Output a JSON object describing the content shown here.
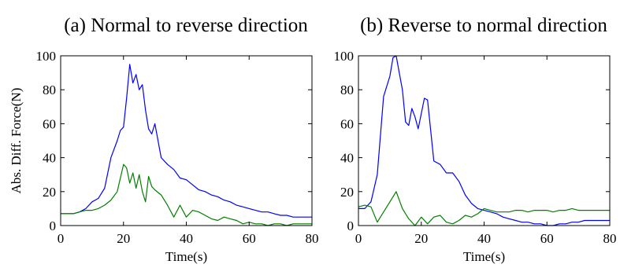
{
  "chart_data": [
    {
      "type": "line",
      "title": "(a) Normal to reverse direction",
      "xlabel": "Time(s)",
      "ylabel": "Abs. Diff. Force(N)",
      "xlim": [
        0,
        80
      ],
      "ylim": [
        0,
        100
      ],
      "xticks": [
        "0",
        "20",
        "40",
        "60",
        "80"
      ],
      "yticks": [
        "0",
        "20",
        "40",
        "60",
        "80",
        "100"
      ],
      "grid": false,
      "series": [
        {
          "color": "#0000ff",
          "x": [
            0,
            2,
            4,
            6,
            8,
            10,
            12,
            14,
            16,
            18,
            19,
            20,
            21,
            22,
            23,
            24,
            25,
            26,
            27,
            28,
            29,
            30,
            32,
            34,
            36,
            38,
            40,
            42,
            44,
            46,
            48,
            50,
            52,
            54,
            56,
            58,
            60,
            62,
            64,
            66,
            68,
            70,
            72,
            74,
            76,
            78,
            80
          ],
          "y": [
            7,
            7,
            7,
            8,
            10,
            14,
            16,
            22,
            40,
            50,
            56,
            58,
            75,
            95,
            84,
            89,
            80,
            83,
            68,
            57,
            54,
            60,
            40,
            36,
            33,
            28,
            27,
            24,
            21,
            20,
            18,
            17,
            15,
            14,
            12,
            11,
            10,
            9,
            8,
            8,
            7,
            6,
            6,
            5,
            5,
            5,
            5
          ]
        },
        {
          "color": "#008000",
          "x": [
            0,
            2,
            4,
            6,
            8,
            10,
            12,
            14,
            16,
            18,
            19,
            20,
            21,
            22,
            23,
            24,
            25,
            26,
            27,
            28,
            29,
            30,
            32,
            34,
            36,
            38,
            40,
            42,
            44,
            46,
            48,
            50,
            52,
            54,
            56,
            58,
            60,
            62,
            64,
            66,
            68,
            70,
            72,
            74,
            76,
            78,
            80
          ],
          "y": [
            7,
            7,
            7,
            8,
            9,
            9,
            10,
            12,
            15,
            20,
            28,
            36,
            34,
            25,
            31,
            22,
            30,
            20,
            14,
            29,
            23,
            21,
            18,
            12,
            5,
            12,
            5,
            9,
            8,
            6,
            4,
            3,
            5,
            4,
            3,
            1,
            2,
            1,
            1,
            0,
            1,
            1,
            0,
            1,
            1,
            1,
            1
          ]
        }
      ]
    },
    {
      "type": "line",
      "title": "(b) Reverse to normal direction",
      "xlabel": "Time(s)",
      "ylabel": "",
      "xlim": [
        0,
        80
      ],
      "ylim": [
        0,
        100
      ],
      "xticks": [
        "0",
        "20",
        "40",
        "60",
        "80"
      ],
      "yticks": [
        "0",
        "20",
        "40",
        "60",
        "80",
        "100"
      ],
      "grid": false,
      "series": [
        {
          "color": "#0000ff",
          "x": [
            0,
            2,
            4,
            6,
            8,
            10,
            11,
            12,
            13,
            14,
            15,
            16,
            17,
            18,
            19,
            20,
            21,
            22,
            24,
            26,
            28,
            30,
            32,
            34,
            36,
            38,
            40,
            42,
            44,
            46,
            48,
            50,
            52,
            54,
            56,
            58,
            60,
            62,
            64,
            66,
            68,
            70,
            72,
            74,
            76,
            78,
            80
          ],
          "y": [
            10,
            10,
            14,
            30,
            76,
            88,
            99,
            100,
            90,
            80,
            61,
            59,
            69,
            64,
            57,
            66,
            75,
            74,
            38,
            36,
            31,
            31,
            26,
            18,
            13,
            10,
            9,
            8,
            7,
            5,
            4,
            3,
            2,
            2,
            1,
            1,
            0,
            0,
            1,
            1,
            2,
            2,
            3,
            3,
            3,
            3,
            3
          ]
        },
        {
          "color": "#008000",
          "x": [
            0,
            2,
            4,
            6,
            8,
            10,
            12,
            14,
            16,
            18,
            20,
            22,
            24,
            26,
            28,
            30,
            32,
            34,
            36,
            38,
            40,
            42,
            44,
            46,
            48,
            50,
            52,
            54,
            56,
            58,
            60,
            62,
            64,
            66,
            68,
            70,
            72,
            74,
            76,
            78,
            80
          ],
          "y": [
            11,
            12,
            11,
            2,
            8,
            14,
            20,
            10,
            4,
            0,
            5,
            1,
            5,
            6,
            2,
            1,
            3,
            6,
            5,
            7,
            10,
            9,
            8,
            8,
            8,
            9,
            9,
            8,
            9,
            9,
            9,
            8,
            9,
            9,
            10,
            9,
            9,
            9,
            9,
            9,
            9
          ]
        }
      ]
    }
  ]
}
